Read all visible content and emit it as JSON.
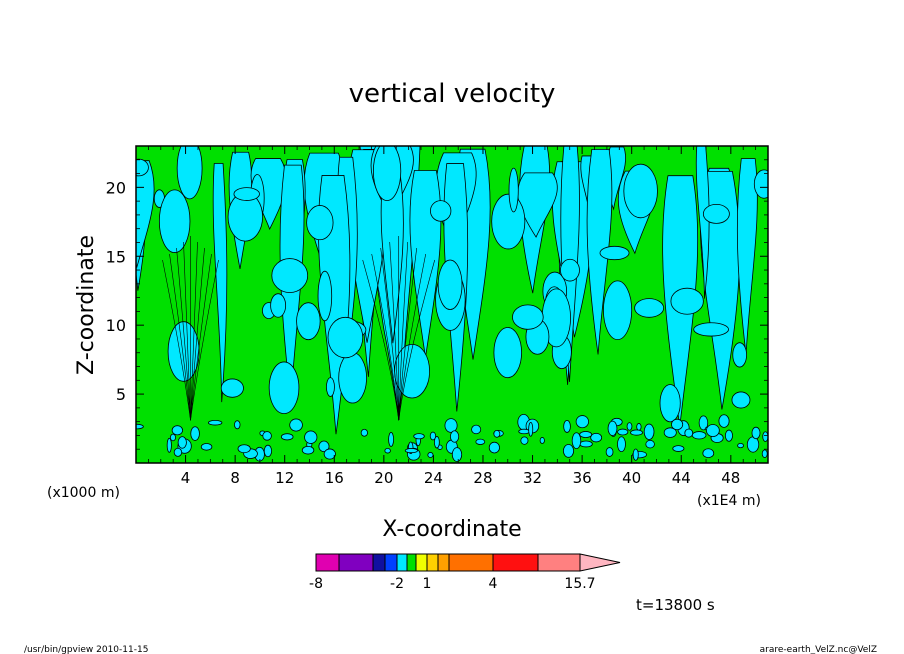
{
  "chart_data": {
    "type": "heatmap",
    "title": "vertical velocity",
    "xlabel": "X-coordinate",
    "ylabel": "Z-coordinate",
    "x_unit_left": "(x1000 m)",
    "x_unit_right": "(x1E4 m)",
    "xlim": [
      0,
      51
    ],
    "ylim": [
      0,
      23
    ],
    "x_ticks": [
      4,
      8,
      12,
      16,
      20,
      24,
      28,
      32,
      36,
      40,
      44,
      48
    ],
    "y_ticks": [
      5,
      10,
      15,
      20
    ],
    "colorbar": {
      "levels": [
        -8,
        -6,
        -4,
        -3,
        -2,
        -1,
        0,
        1,
        2,
        3,
        4,
        7,
        10,
        13,
        15.7
      ],
      "labels": [
        "-8",
        "-2",
        "1",
        "4",
        "15.7"
      ],
      "label_values": [
        -8,
        -2,
        1,
        4,
        15.7
      ],
      "colors": [
        "#e000b0",
        "#8000c0",
        "#1010a0",
        "#0040ff",
        "#00e8ff",
        "#00e000",
        "#f0ff00",
        "#ffd000",
        "#ffa000",
        "#ff7000",
        "#ff1010",
        "#ff8080",
        "#ffb6c1"
      ]
    },
    "time_label": "t=13800 s"
  },
  "footer": {
    "left": "/usr/bin/gpview   2010-11-15",
    "right": "arare-earth_VelZ.nc@VelZ"
  },
  "colors": {
    "cyan": "#00e8ff",
    "green": "#00e000"
  }
}
